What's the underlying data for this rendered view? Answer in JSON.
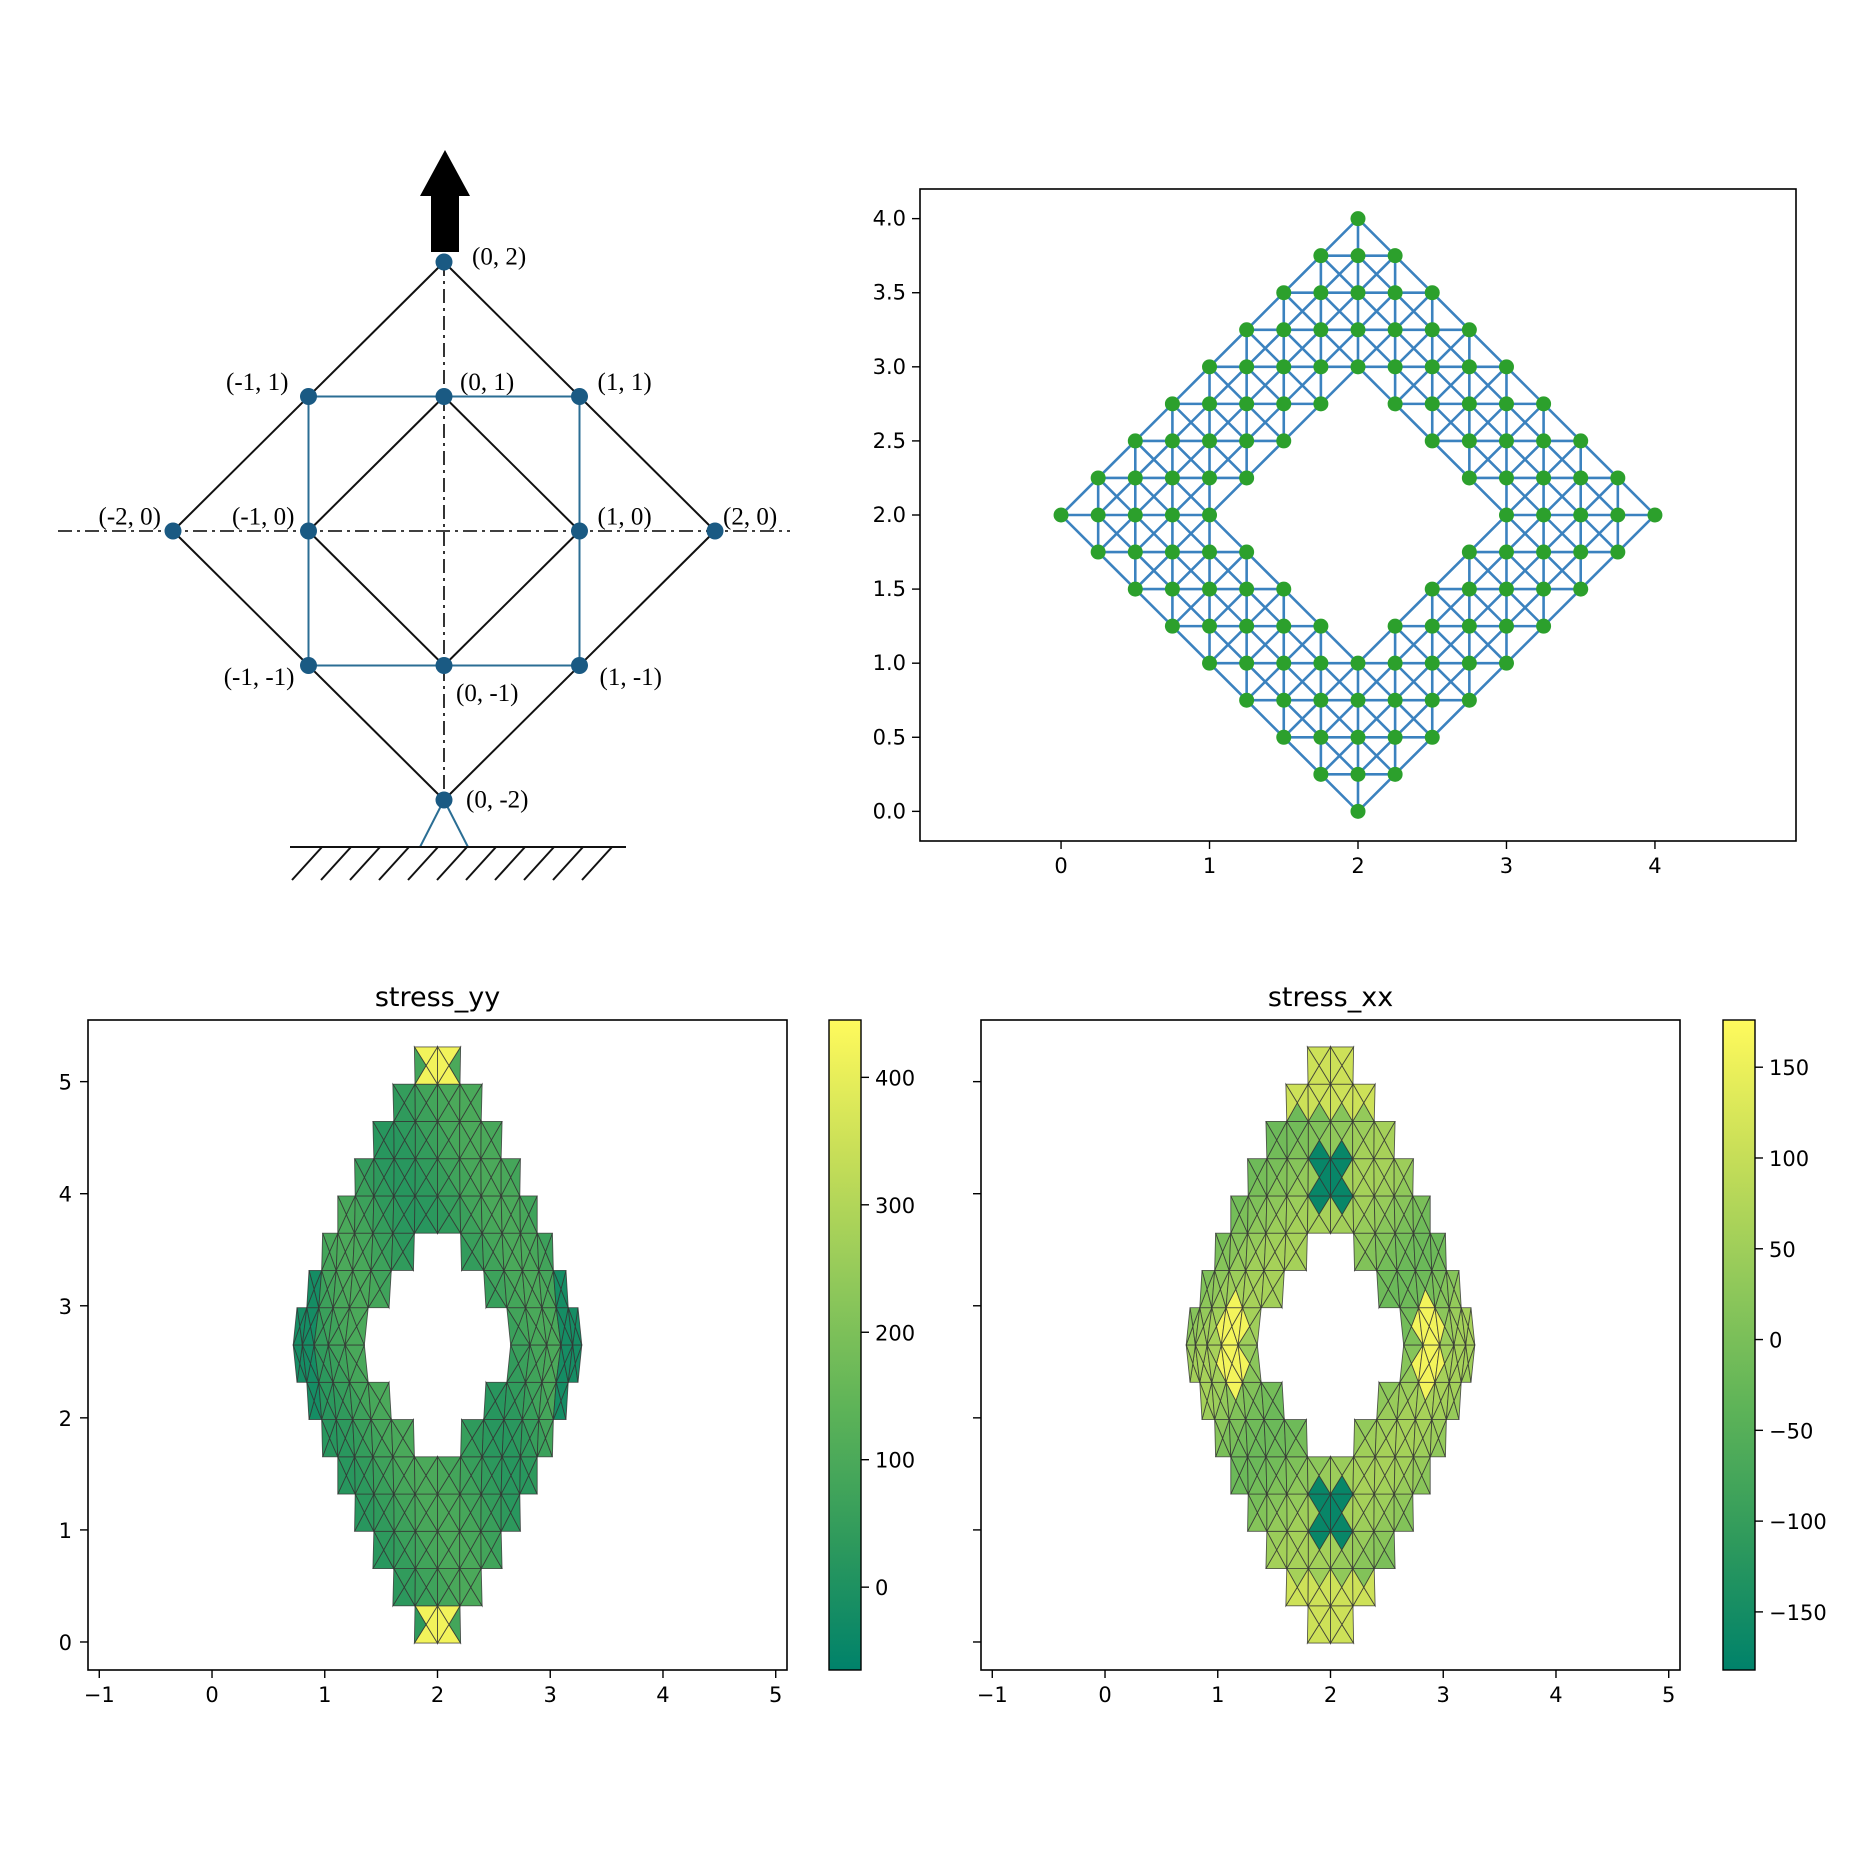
{
  "chart_data": [
    {
      "type": "diagram",
      "node_labels": [
        "(0, 2)",
        "(-1, 1)",
        "(0, 1)",
        "(1, 1)",
        "(-2, 0)",
        "(-1, 0)",
        "(1, 0)",
        "(2, 0)",
        "(-1, -1)",
        "(0, -1)",
        "(1, -1)",
        "(0, -2)"
      ],
      "nodes": [
        [
          0,
          2
        ],
        [
          -1,
          1
        ],
        [
          0,
          1
        ],
        [
          1,
          1
        ],
        [
          -2,
          0
        ],
        [
          -1,
          0
        ],
        [
          1,
          0
        ],
        [
          2,
          0
        ],
        [
          -1,
          -1
        ],
        [
          0,
          -1
        ],
        [
          1,
          -1
        ],
        [
          0,
          -2
        ]
      ],
      "colors": {
        "outer_edges": "#000000",
        "inner_square": "#2b6e94",
        "nodes": "#1a5a83",
        "axes": "#000000"
      }
    },
    {
      "type": "scatter",
      "title": "",
      "xlabel": "",
      "ylabel": "",
      "xlim": [
        -0.95,
        4.95
      ],
      "ylim": [
        -0.2,
        4.2
      ],
      "x_ticks": [
        "0",
        "1",
        "2",
        "3",
        "4"
      ],
      "y_ticks": [
        "0.0",
        "0.5",
        "1.0",
        "1.5",
        "2.0",
        "2.5",
        "3.0",
        "3.5",
        "4.0"
      ],
      "grid_spacing": 0.25,
      "shape": "diamond lattice with diamond hole, outer corners (0,2),(2,0),(4,2),(2,4), hole corners (1,2),(2,1),(3,2),(2,3)",
      "colors": {
        "edges": "#3b82bf",
        "nodes": "#2ca02c"
      }
    },
    {
      "type": "heatmap",
      "title": "stress_yy",
      "xlim": [
        -1.1,
        5.1
      ],
      "ylim": [
        -0.25,
        5.55
      ],
      "x_ticks": [
        "−1",
        "0",
        "1",
        "2",
        "3",
        "4",
        "5"
      ],
      "y_ticks": [
        "0",
        "1",
        "2",
        "3",
        "4",
        "5"
      ],
      "colorbar": {
        "min": -65,
        "max": 445,
        "ticks": [
          "0",
          "100",
          "200",
          "300",
          "400"
        ],
        "tick_values": [
          0,
          100,
          200,
          300,
          400
        ]
      },
      "colormap": [
        "#00826a",
        "#2f9a5c",
        "#5db358",
        "#92c95a",
        "#c9df58",
        "#fffa5c"
      ]
    },
    {
      "type": "heatmap",
      "title": "stress_xx",
      "xlim": [
        -1.1,
        5.1
      ],
      "ylim": [
        -0.25,
        5.55
      ],
      "x_ticks": [
        "−1",
        "0",
        "1",
        "2",
        "3",
        "4",
        "5"
      ],
      "y_ticks": [],
      "colorbar": {
        "min": -182,
        "max": 176,
        "ticks": [
          "150",
          "100",
          "50",
          "0",
          "−50",
          "−100",
          "−150"
        ],
        "tick_values": [
          150,
          100,
          50,
          0,
          -50,
          -100,
          -150
        ]
      },
      "colormap": [
        "#00826a",
        "#2f9a5c",
        "#5db358",
        "#92c95a",
        "#c9df58",
        "#fffa5c"
      ]
    }
  ]
}
